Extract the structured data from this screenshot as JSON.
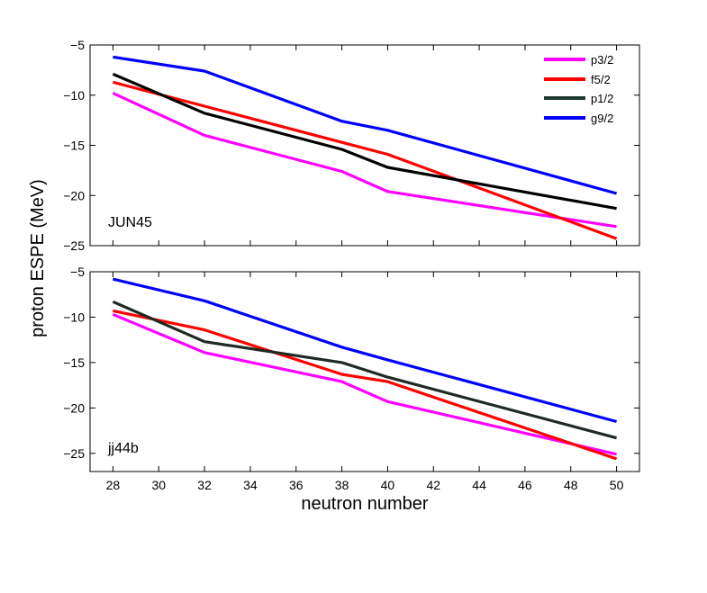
{
  "chart_data": {
    "type": "line",
    "ylabel": "proton ESPE (MeV)",
    "xlabel": "neutron number",
    "x_ticks": [
      28,
      30,
      32,
      34,
      36,
      38,
      40,
      42,
      44,
      46,
      48,
      50
    ],
    "xlim": [
      27,
      51
    ],
    "legend": {
      "placement": "top-right",
      "entries": [
        {
          "name": "p3/2",
          "color": "#ff00ff"
        },
        {
          "name": "f5/2",
          "color": "#ff0000"
        },
        {
          "name": "p1/2",
          "color": "#1e3a2f"
        },
        {
          "name": "g9/2",
          "color": "#0000ff"
        }
      ]
    },
    "panels": [
      {
        "label": "JUN45",
        "ylim": [
          -25,
          -5
        ],
        "y_ticks": [
          -5,
          -10,
          -15,
          -20,
          -25
        ],
        "y_tick_labels": [
          "−5",
          "−10",
          "−15",
          "−20",
          "−25"
        ],
        "series": [
          {
            "name": "p3/2",
            "color": "#ff00ff",
            "x": [
              28,
              32,
              38,
              40,
              50
            ],
            "y": [
              -9.8,
              -14.0,
              -17.6,
              -19.6,
              -23.1
            ]
          },
          {
            "name": "f5/2",
            "color": "#ff0000",
            "x": [
              28,
              32,
              38,
              40,
              50
            ],
            "y": [
              -8.7,
              -11.1,
              -14.7,
              -15.9,
              -24.3
            ]
          },
          {
            "name": "p1/2",
            "color": "#000000",
            "x": [
              28,
              32,
              38,
              40,
              50
            ],
            "y": [
              -7.9,
              -11.8,
              -15.4,
              -17.2,
              -21.3
            ]
          },
          {
            "name": "g9/2",
            "color": "#0000ff",
            "x": [
              28,
              32,
              38,
              40,
              50
            ],
            "y": [
              -6.2,
              -7.6,
              -12.6,
              -13.5,
              -19.8
            ]
          }
        ]
      },
      {
        "label": "jj44b",
        "ylim": [
          -27,
          -5
        ],
        "y_ticks": [
          -5,
          -10,
          -15,
          -20,
          -25
        ],
        "y_tick_labels": [
          "−5",
          "−10",
          "−15",
          "−20",
          "−25"
        ],
        "series": [
          {
            "name": "p3/2",
            "color": "#ff00ff",
            "x": [
              28,
              32,
              38,
              40,
              50
            ],
            "y": [
              -9.7,
              -13.9,
              -17.1,
              -19.3,
              -25.1
            ]
          },
          {
            "name": "f5/2",
            "color": "#ff0000",
            "x": [
              28,
              32,
              38,
              40,
              50
            ],
            "y": [
              -9.3,
              -11.4,
              -16.3,
              -17.1,
              -25.6
            ]
          },
          {
            "name": "p1/2",
            "color": "#1e2a22",
            "x": [
              28,
              32,
              38,
              40,
              50
            ],
            "y": [
              -8.3,
              -12.7,
              -15.0,
              -16.6,
              -23.3
            ]
          },
          {
            "name": "g9/2",
            "color": "#0000ff",
            "x": [
              28,
              32,
              38,
              40,
              50
            ],
            "y": [
              -5.8,
              -8.2,
              -13.3,
              -14.7,
              -21.5
            ]
          }
        ]
      }
    ]
  }
}
